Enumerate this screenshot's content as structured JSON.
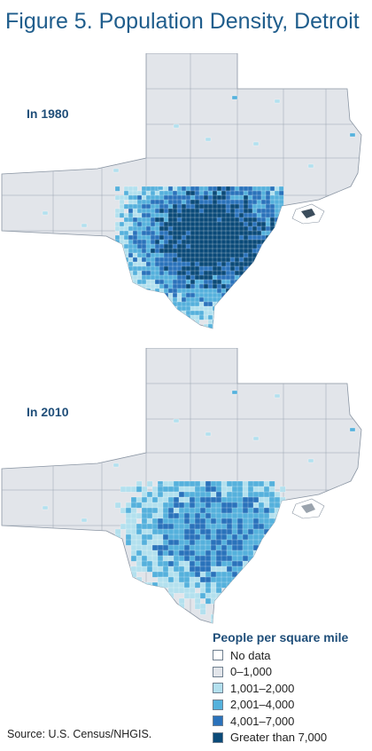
{
  "title": "Figure 5. Population Density, Detroit",
  "maps": [
    {
      "label": "In 1980"
    },
    {
      "label": "In 2010"
    }
  ],
  "legend": {
    "title": "People per square mile",
    "items": [
      {
        "label": "No data",
        "color": "#ffffff"
      },
      {
        "label": "0–1,000",
        "color": "#e2e5ea"
      },
      {
        "label": "1,001–2,000",
        "color": "#b3e0ee"
      },
      {
        "label": "2,001–4,000",
        "color": "#55b1dc"
      },
      {
        "label": "4,001–7,000",
        "color": "#2a72bb"
      },
      {
        "label": "Greater than 7,000",
        "color": "#0a4a78"
      }
    ]
  },
  "source": "Source: U.S. Census/NHGIS."
}
